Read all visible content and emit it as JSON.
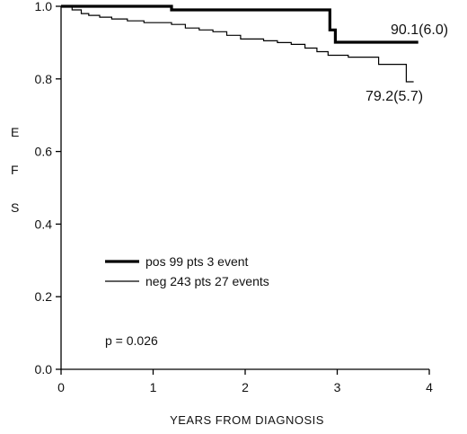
{
  "chart_data": {
    "type": "line",
    "title": "",
    "xlabel": "YEARS FROM DIAGNOSIS",
    "ylabel": [
      "E",
      "F",
      "S"
    ],
    "xlim": [
      0,
      4
    ],
    "ylim": [
      0.0,
      1.0
    ],
    "x_ticks": [
      "0",
      "1",
      "2",
      "3",
      "4"
    ],
    "y_ticks": [
      "0.0",
      "0.2",
      "0.4",
      "0.6",
      "0.8",
      "1.0"
    ],
    "grid": false,
    "legend_position": "lower-left",
    "series": [
      {
        "name": "pos 99 pts   3 event",
        "stroke_width": "thick",
        "color": "#000000",
        "x": [
          0,
          1.2,
          1.2,
          2.92,
          2.92,
          2.98,
          2.98,
          3.88
        ],
        "y": [
          1.0,
          1.0,
          0.99,
          0.99,
          0.935,
          0.935,
          0.901,
          0.901
        ],
        "end_label": "90.1(6.0)"
      },
      {
        "name": "neg 243 pts 27 events",
        "stroke_width": "thin",
        "color": "#000000",
        "x": [
          0,
          0.12,
          0.12,
          0.22,
          0.22,
          0.3,
          0.3,
          0.42,
          0.42,
          0.55,
          0.55,
          0.72,
          0.72,
          0.9,
          0.9,
          1.2,
          1.2,
          1.35,
          1.35,
          1.5,
          1.5,
          1.65,
          1.65,
          1.8,
          1.8,
          1.95,
          1.95,
          2.2,
          2.2,
          2.35,
          2.35,
          2.5,
          2.5,
          2.65,
          2.65,
          2.78,
          2.78,
          2.9,
          2.9,
          3.12,
          3.12,
          3.45,
          3.45,
          3.75,
          3.75,
          3.83
        ],
        "y": [
          1.0,
          1.0,
          0.99,
          0.99,
          0.98,
          0.98,
          0.975,
          0.975,
          0.97,
          0.97,
          0.965,
          0.965,
          0.96,
          0.96,
          0.955,
          0.955,
          0.95,
          0.95,
          0.94,
          0.94,
          0.935,
          0.935,
          0.93,
          0.93,
          0.92,
          0.92,
          0.91,
          0.91,
          0.905,
          0.905,
          0.9,
          0.9,
          0.895,
          0.895,
          0.885,
          0.885,
          0.875,
          0.875,
          0.865,
          0.865,
          0.86,
          0.86,
          0.84,
          0.84,
          0.792,
          0.792
        ],
        "end_label": "79.2(5.7)"
      }
    ],
    "annotations": [
      "p = 0.026"
    ]
  }
}
